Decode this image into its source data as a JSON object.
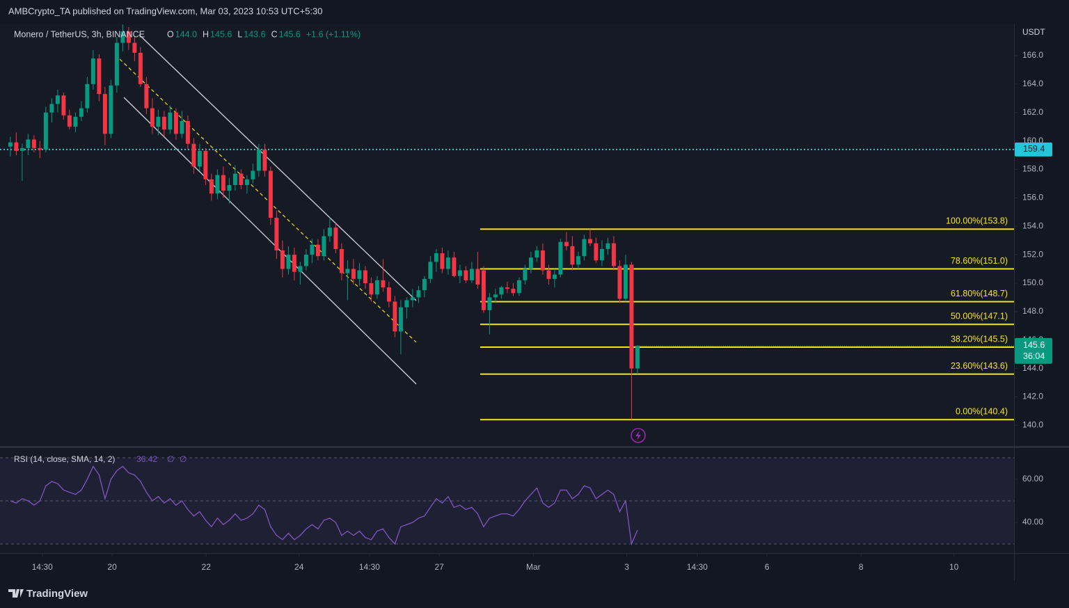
{
  "chart_data": {
    "type": "candlestick",
    "published": "AMBCrypto_TA published on TradingView.com, Mar 03, 2023 10:53 UTC+5:30",
    "symbol": "Monero / TetherUS, 3h, BINANCE",
    "legend": [
      {
        "key": "O",
        "value": "144.0"
      },
      {
        "key": "H",
        "value": "145.6"
      },
      {
        "key": "L",
        "value": "143.6"
      },
      {
        "key": "C",
        "value": "145.6"
      }
    ],
    "change": "+1.6 (+1.11%)",
    "currency": "USDT",
    "up_color": "#089981",
    "down_color": "#f23645",
    "grid": false,
    "ylim": [
      138.6,
      168.2
    ],
    "yticks": [
      {
        "value": 140,
        "label": "140.0"
      },
      {
        "value": 142,
        "label": "142.0"
      },
      {
        "value": 144,
        "label": "144.0"
      },
      {
        "value": 146,
        "label": "146.0"
      },
      {
        "value": 148,
        "label": "148.0"
      },
      {
        "value": 150,
        "label": "150.0"
      },
      {
        "value": 152,
        "label": "152.0"
      },
      {
        "value": 154,
        "label": "154.0"
      },
      {
        "value": 156,
        "label": "156.0"
      },
      {
        "value": 158,
        "label": "158.0"
      },
      {
        "value": 160,
        "label": "160.0"
      },
      {
        "value": 162,
        "label": "162.0"
      },
      {
        "value": 164,
        "label": "164.0"
      },
      {
        "value": 166,
        "label": "166.0"
      }
    ],
    "xlim": [
      -1.75,
      169.65
    ],
    "xticks": [
      {
        "value": 5.4,
        "label": "14:30"
      },
      {
        "value": 17.2,
        "label": "20"
      },
      {
        "value": 33.1,
        "label": "22"
      },
      {
        "value": 48.8,
        "label": "24"
      },
      {
        "value": 60.7,
        "label": "14:30"
      },
      {
        "value": 72.5,
        "label": "27"
      },
      {
        "value": 88.4,
        "label": "Mar"
      },
      {
        "value": 104.2,
        "label": "3"
      },
      {
        "value": 116.1,
        "label": "14:30"
      },
      {
        "value": 127.9,
        "label": "6"
      },
      {
        "value": 143.8,
        "label": "8"
      },
      {
        "value": 159.5,
        "label": "10"
      }
    ],
    "ohlc": [
      [
        159.6,
        160.3,
        158.9,
        159.9
      ],
      [
        159.9,
        160.6,
        159.0,
        159.3
      ],
      [
        159.3,
        159.8,
        157.2,
        159.5
      ],
      [
        159.5,
        160.5,
        159.0,
        160.1
      ],
      [
        160.1,
        160.4,
        159.2,
        159.5
      ],
      [
        159.5,
        160.0,
        158.8,
        159.4
      ],
      [
        159.4,
        162.4,
        159.2,
        162.0
      ],
      [
        162.0,
        163.0,
        161.3,
        162.6
      ],
      [
        162.6,
        163.6,
        162.0,
        163.2
      ],
      [
        163.2,
        163.4,
        161.5,
        161.8
      ],
      [
        161.8,
        162.2,
        160.8,
        161.0
      ],
      [
        161.0,
        162.0,
        160.6,
        161.7
      ],
      [
        161.7,
        162.8,
        161.4,
        162.3
      ],
      [
        162.3,
        164.5,
        162.0,
        164.0
      ],
      [
        164.0,
        166.4,
        163.6,
        165.8
      ],
      [
        165.8,
        166.1,
        162.8,
        163.3
      ],
      [
        163.3,
        163.8,
        159.7,
        160.5
      ],
      [
        160.5,
        164.3,
        160.2,
        163.9
      ],
      [
        163.9,
        167.3,
        163.4,
        166.9
      ],
      [
        166.9,
        168.2,
        166.3,
        167.7
      ],
      [
        167.7,
        168.0,
        166.4,
        166.9
      ],
      [
        166.9,
        167.3,
        165.6,
        166.2
      ],
      [
        166.2,
        166.6,
        163.8,
        164.0
      ],
      [
        164.0,
        164.5,
        161.9,
        162.3
      ],
      [
        162.3,
        163.0,
        160.5,
        161.0
      ],
      [
        161.0,
        162.2,
        160.4,
        161.7
      ],
      [
        161.7,
        162.1,
        160.3,
        160.8
      ],
      [
        160.8,
        162.5,
        160.5,
        162.0
      ],
      [
        162.0,
        162.3,
        160.1,
        160.5
      ],
      [
        160.5,
        162.1,
        160.2,
        161.4
      ],
      [
        161.4,
        161.8,
        159.4,
        159.8
      ],
      [
        159.8,
        160.2,
        157.7,
        158.2
      ],
      [
        158.2,
        159.8,
        157.9,
        159.3
      ],
      [
        159.3,
        159.5,
        156.9,
        157.3
      ],
      [
        157.3,
        157.7,
        155.8,
        156.3
      ],
      [
        156.3,
        158.0,
        155.9,
        157.6
      ],
      [
        157.6,
        158.2,
        156.0,
        156.5
      ],
      [
        156.5,
        157.4,
        155.6,
        156.9
      ],
      [
        156.9,
        158.3,
        156.5,
        157.7
      ],
      [
        157.7,
        158.0,
        156.6,
        156.9
      ],
      [
        156.9,
        157.6,
        156.3,
        157.3
      ],
      [
        157.3,
        158.4,
        157.0,
        157.9
      ],
      [
        157.9,
        159.8,
        157.5,
        159.4
      ],
      [
        159.4,
        159.8,
        157.5,
        157.9
      ],
      [
        157.9,
        158.2,
        154.1,
        154.6
      ],
      [
        154.6,
        155.1,
        151.7,
        152.3
      ],
      [
        152.3,
        153.0,
        150.4,
        151.0
      ],
      [
        151.0,
        152.6,
        150.6,
        152.0
      ],
      [
        152.0,
        152.5,
        150.2,
        150.8
      ],
      [
        150.8,
        151.5,
        149.9,
        151.2
      ],
      [
        151.2,
        152.4,
        150.9,
        152.0
      ],
      [
        152.0,
        153.1,
        151.4,
        152.7
      ],
      [
        152.7,
        153.1,
        151.6,
        151.9
      ],
      [
        151.9,
        153.8,
        151.6,
        153.3
      ],
      [
        153.3,
        154.6,
        152.9,
        153.9
      ],
      [
        153.9,
        154.2,
        152.1,
        152.4
      ],
      [
        152.4,
        152.8,
        150.2,
        150.7
      ],
      [
        150.7,
        151.6,
        148.8,
        151.0
      ],
      [
        151.0,
        151.7,
        149.9,
        150.3
      ],
      [
        150.3,
        151.4,
        149.8,
        150.9
      ],
      [
        150.9,
        151.2,
        149.6,
        150.0
      ],
      [
        150.0,
        150.4,
        148.7,
        149.2
      ],
      [
        149.2,
        150.5,
        148.9,
        150.2
      ],
      [
        150.2,
        151.7,
        149.4,
        149.7
      ],
      [
        149.7,
        150.1,
        148.3,
        148.7
      ],
      [
        148.7,
        149.1,
        146.2,
        146.6
      ],
      [
        146.6,
        148.8,
        145.0,
        148.3
      ],
      [
        148.3,
        149.0,
        147.5,
        148.8
      ],
      [
        148.8,
        149.6,
        148.3,
        149.0
      ],
      [
        149.0,
        149.8,
        148.6,
        149.5
      ],
      [
        149.5,
        150.5,
        149.0,
        150.3
      ],
      [
        150.3,
        151.9,
        150.0,
        151.5
      ],
      [
        151.5,
        152.4,
        150.8,
        152.1
      ],
      [
        152.1,
        152.5,
        150.7,
        151.0
      ],
      [
        151.0,
        152.3,
        150.6,
        151.8
      ],
      [
        151.8,
        152.2,
        150.4,
        150.5
      ],
      [
        150.5,
        151.3,
        150.0,
        150.9
      ],
      [
        150.9,
        151.2,
        150.0,
        150.2
      ],
      [
        150.2,
        151.5,
        150.0,
        151.0
      ],
      [
        151.0,
        152.2,
        149.6,
        149.9
      ],
      [
        150.9,
        151.2,
        147.9,
        148.1
      ],
      [
        148.1,
        149.3,
        146.4,
        149.0
      ],
      [
        149.0,
        149.6,
        148.6,
        149.2
      ],
      [
        149.2,
        149.8,
        148.9,
        149.7
      ],
      [
        149.7,
        150.1,
        149.3,
        149.6
      ],
      [
        149.6,
        150.0,
        149.1,
        149.3
      ],
      [
        149.3,
        150.4,
        149.1,
        150.2
      ],
      [
        150.2,
        151.3,
        149.9,
        151.0
      ],
      [
        151.0,
        152.2,
        150.7,
        151.8
      ],
      [
        151.8,
        152.6,
        151.5,
        152.3
      ],
      [
        152.3,
        152.8,
        150.6,
        150.9
      ],
      [
        150.9,
        151.3,
        149.9,
        150.3
      ],
      [
        150.3,
        151.0,
        149.7,
        150.6
      ],
      [
        150.6,
        153.1,
        150.4,
        152.9
      ],
      [
        152.9,
        153.6,
        152.3,
        152.6
      ],
      [
        152.6,
        153.3,
        150.9,
        151.3
      ],
      [
        151.3,
        152.2,
        151.0,
        151.9
      ],
      [
        151.9,
        153.4,
        151.6,
        153.1
      ],
      [
        153.1,
        153.8,
        152.6,
        152.8
      ],
      [
        152.8,
        153.2,
        151.4,
        151.6
      ],
      [
        151.6,
        153.0,
        151.2,
        152.4
      ],
      [
        152.4,
        153.2,
        152.0,
        152.8
      ],
      [
        152.8,
        153.3,
        150.9,
        151.2
      ],
      [
        151.2,
        151.6,
        148.6,
        148.9
      ],
      [
        148.9,
        152.0,
        148.7,
        151.3
      ],
      [
        151.3,
        151.5,
        140.4,
        144.0
      ],
      [
        144.0,
        145.6,
        143.6,
        145.6
      ]
    ],
    "countdown": "36:04",
    "marker_line": {
      "value": 159.4,
      "color": "#26c6da"
    },
    "fib_color": "#f5e51f",
    "fib": [
      {
        "level": 153.8,
        "label": "100.00%(153.8)"
      },
      {
        "level": 151.0,
        "label": "78.60%(151.0)"
      },
      {
        "level": 148.7,
        "label": "61.80%(148.7)"
      },
      {
        "level": 147.1,
        "label": "50.00%(147.1)"
      },
      {
        "level": 145.5,
        "label": "38.20%(145.5)"
      },
      {
        "level": 143.6,
        "label": "23.60%(143.6)"
      },
      {
        "level": 140.4,
        "label": "0.00%(140.4)"
      }
    ],
    "rsi": {
      "title": "RSI (14, close, SMA, 14, 2)",
      "value_label": "36.42",
      "extra": [
        "∅",
        "∅"
      ],
      "color": "#7e57c2",
      "ylim": [
        25.8,
        74.2
      ],
      "yticks": [
        {
          "value": 40,
          "label": "40.00"
        },
        {
          "value": 60,
          "label": "60.00"
        }
      ],
      "bands": [
        70,
        50,
        30
      ],
      "values": [
        50,
        49,
        51,
        50,
        48,
        50,
        57,
        59,
        58,
        55,
        54,
        53,
        55,
        60,
        66,
        62,
        51,
        60,
        64,
        66,
        63,
        62,
        59,
        54,
        50,
        52,
        49,
        51,
        48,
        50,
        46,
        43,
        45,
        41,
        38,
        42,
        39,
        41,
        44,
        41,
        42,
        44,
        48,
        46,
        38,
        34,
        32,
        35,
        32,
        34,
        37,
        39,
        37,
        41,
        42,
        40,
        34,
        36,
        34,
        36,
        33,
        32,
        36,
        37,
        33,
        30,
        38,
        39,
        40,
        42,
        43,
        47,
        51,
        49,
        52,
        47,
        48,
        46,
        47,
        44,
        38,
        42,
        43,
        44,
        44,
        43,
        46,
        50,
        53,
        56,
        49,
        47,
        49,
        55,
        55,
        51,
        53,
        57,
        56,
        51,
        53,
        55,
        53,
        45,
        50,
        30,
        36.42
      ]
    },
    "brand": "TradingView"
  }
}
